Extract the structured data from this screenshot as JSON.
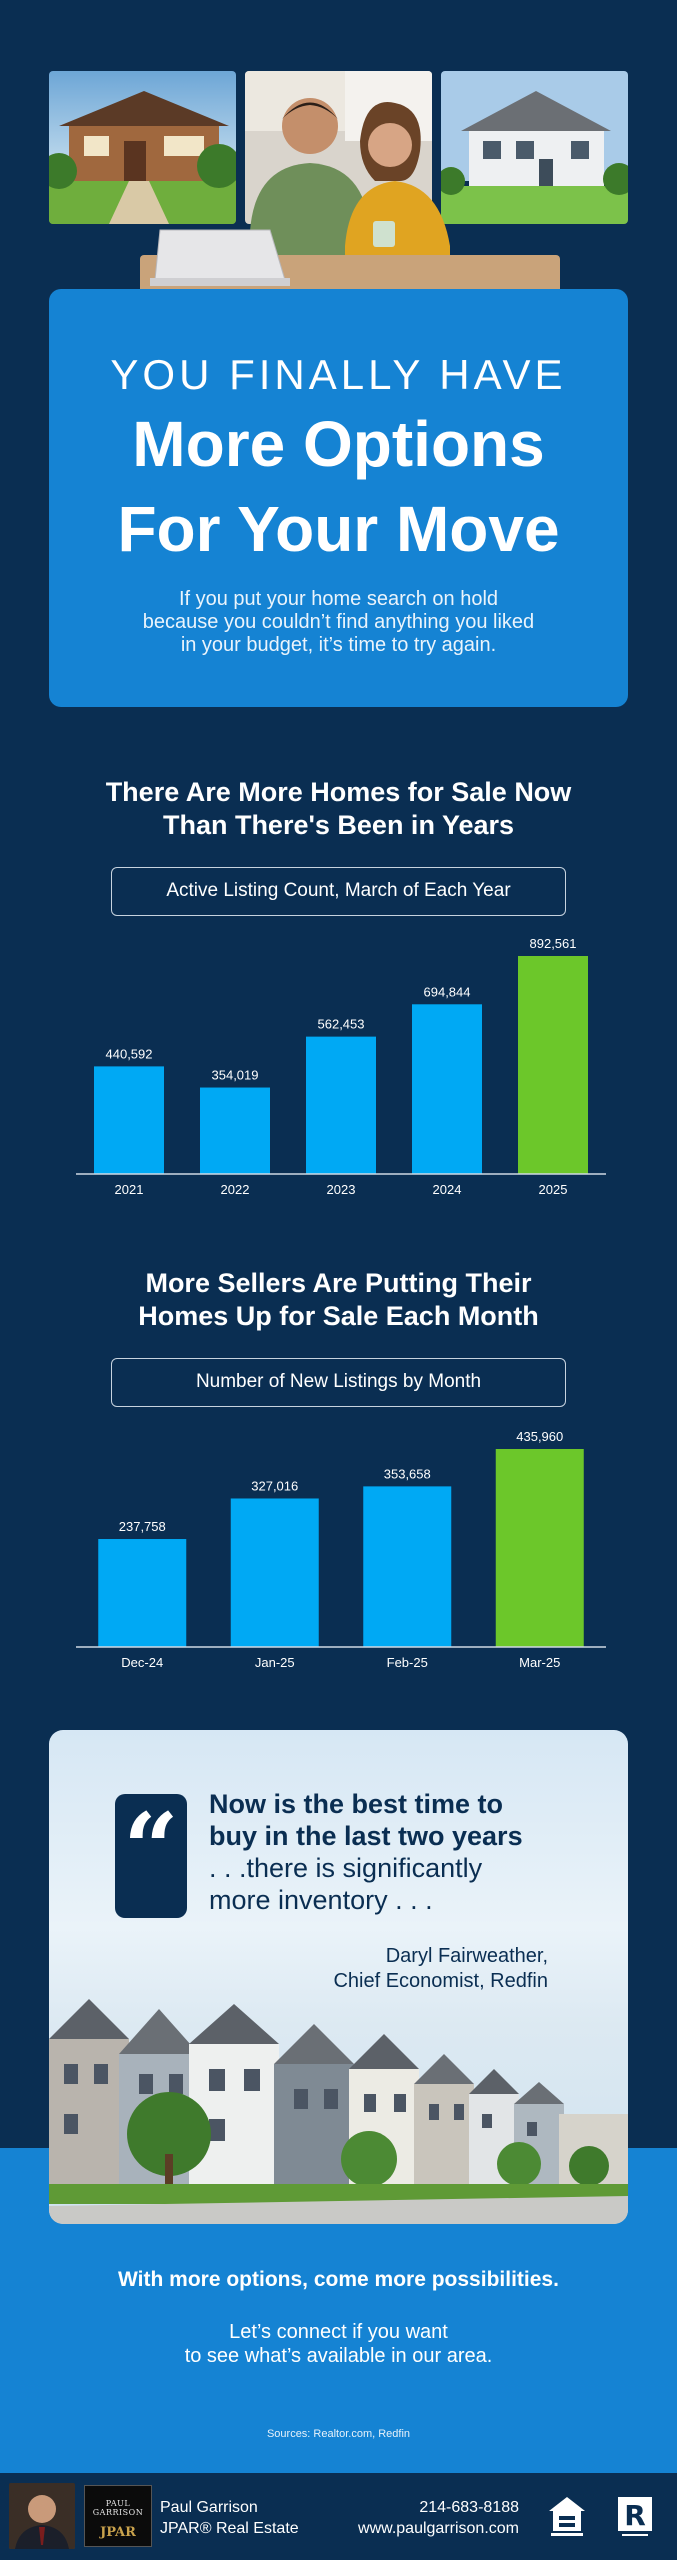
{
  "hero": {
    "photo_left": "house-photo",
    "photo_center": "couple-photo",
    "photo_right": "house-photo"
  },
  "title_card": {
    "kicker": "YOU FINALLY HAVE",
    "headline_line1": "More Options",
    "headline_line2": "For Your Move",
    "subtitle": "If you put your home search on hold because you couldn’t find anything you liked in your budget, it’s time to try again."
  },
  "section1": {
    "heading_line1": "There Are More Homes for Sale Now",
    "heading_line2": "Than There's Been in Years",
    "chart_label": "Active Listing Count, March of Each Year"
  },
  "section2": {
    "heading_line1": "More Sellers Are Putting Their",
    "heading_line2": "Homes Up for Sale Each Month",
    "chart_label": "Number of New Listings by Month"
  },
  "chart_data": [
    {
      "type": "bar",
      "title": "Active Listing Count, March of Each Year",
      "categories": [
        "2021",
        "2022",
        "2023",
        "2024",
        "2025"
      ],
      "values": [
        440592,
        354019,
        562453,
        694844,
        892561
      ],
      "data_labels": [
        "440,592",
        "354,019",
        "562,453",
        "694,844",
        "892,561"
      ],
      "ylim": [
        0,
        892561
      ],
      "grid": false,
      "colors": [
        "#00a9f4",
        "#00a9f4",
        "#00a9f4",
        "#00a9f4",
        "#6cc72a"
      ]
    },
    {
      "type": "bar",
      "title": "Number of New Listings by Month",
      "categories": [
        "Dec-24",
        "Jan-25",
        "Feb-25",
        "Mar-25"
      ],
      "values": [
        237758,
        327016,
        353658,
        435960
      ],
      "data_labels": [
        "237,758",
        "327,016",
        "353,658",
        "435,960"
      ],
      "ylim": [
        0,
        435960
      ],
      "grid": false,
      "colors": [
        "#00a9f4",
        "#00a9f4",
        "#00a9f4",
        "#6cc72a"
      ]
    }
  ],
  "quote": {
    "icon": "quote-icon",
    "bold_line1": "Now is the best time to",
    "bold_line2": "buy in the last two years",
    "regular_line1": ". . .there is significantly",
    "regular_line2": "more inventory . . .",
    "author": "Daryl Fairweather,",
    "author_title": "Chief Economist, Redfin"
  },
  "cta": {
    "bold": "With more options, come more possibilities.",
    "line1": "Let’s connect if you want",
    "line2": "to see what’s available in our area.",
    "sources": "Sources: Realtor.com, Redfin"
  },
  "footer": {
    "agent_name": "Paul Garrison",
    "company": "JPAR® Real Estate",
    "phone": "214-683-8188",
    "website": "www.paulgarrison.com",
    "logo_text_line1": "PAUL GARRISON",
    "logo_mark": "JPAR",
    "eho_icon": "equal-housing-icon",
    "realtor_icon": "realtor-icon"
  },
  "colors": {
    "navy": "#0a2e52",
    "blue": "#1583d3",
    "bar_blue": "#00a9f4",
    "bar_green": "#6cc72a"
  }
}
